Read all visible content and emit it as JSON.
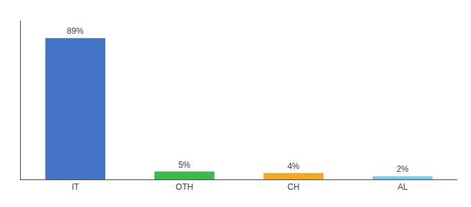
{
  "chart_data": {
    "type": "bar",
    "categories": [
      "IT",
      "OTH",
      "CH",
      "AL"
    ],
    "values": [
      89,
      5,
      4,
      2
    ],
    "value_labels": [
      "89%",
      "5%",
      "4%",
      "2%"
    ],
    "colors": [
      "#4472c4",
      "#3dba4e",
      "#f5a623",
      "#75c8f0"
    ],
    "ylim": [
      0,
      100
    ],
    "data_labels": true,
    "tick_labels": "x",
    "grid": false
  }
}
